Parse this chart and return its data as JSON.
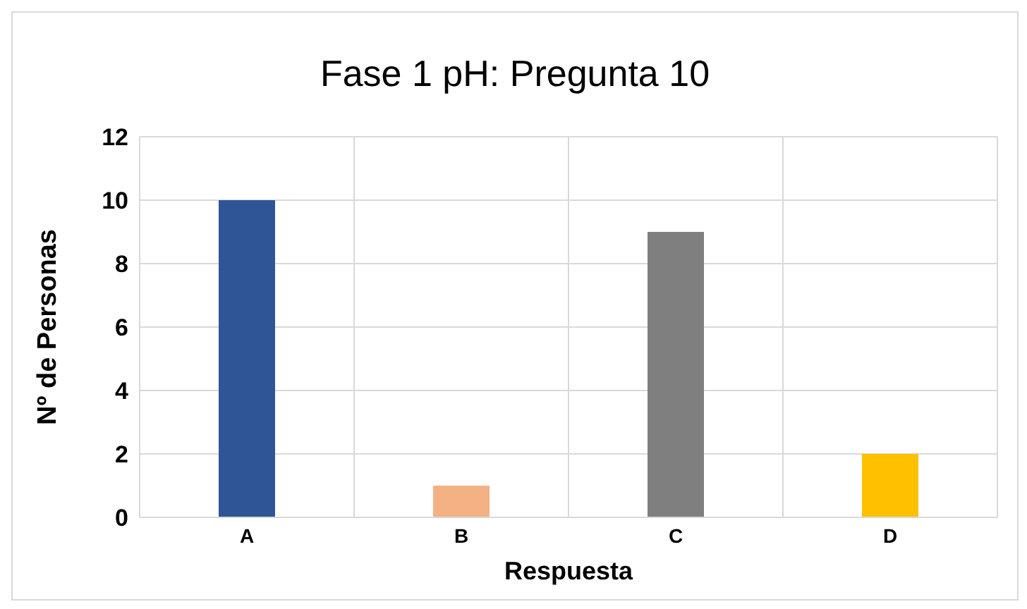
{
  "chart_data": {
    "type": "bar",
    "title": "Fase 1 pH: Pregunta 10",
    "xlabel": "Respuesta",
    "ylabel": "Nº de Personas",
    "categories": [
      "A",
      "B",
      "C",
      "D"
    ],
    "values": [
      10,
      1,
      9,
      2
    ],
    "colors": [
      "#2f5597",
      "#f4b183",
      "#7f7f7f",
      "#ffc000"
    ],
    "ylim": [
      0,
      12
    ],
    "yticks": [
      0,
      2,
      4,
      6,
      8,
      10,
      12
    ],
    "grid": true
  }
}
